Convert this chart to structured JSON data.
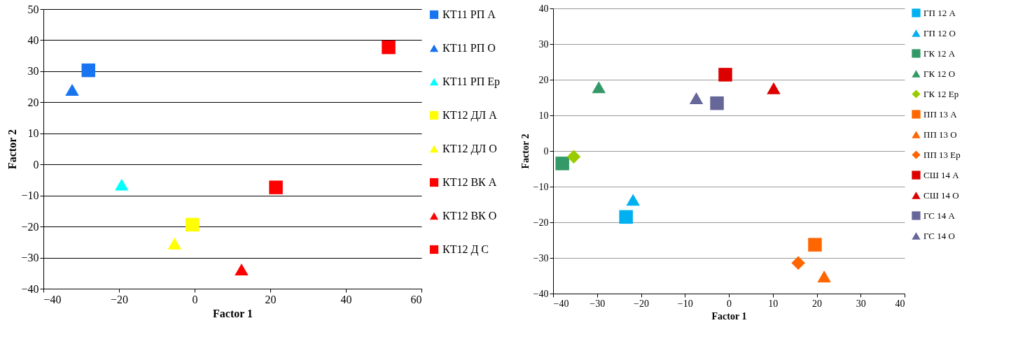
{
  "chart_data": [
    {
      "type": "scatter",
      "xlabel": "Factor 1",
      "ylabel": "Factor 2",
      "xlim": [
        -40,
        60
      ],
      "ylim": [
        -40,
        50
      ],
      "xticks": [
        -40,
        -20,
        0,
        20,
        40,
        60
      ],
      "yticks": [
        -40,
        -30,
        -20,
        -10,
        0,
        10,
        20,
        30,
        40,
        50
      ],
      "grid": "y",
      "legend": "right",
      "series": [
        {
          "name": "КТ11 РП А",
          "color": "#1874f0",
          "marker": "square",
          "x": [
            -28.1
          ],
          "values": [
            30.3
          ]
        },
        {
          "name": "КТ11 РП О",
          "color": "#1874f0",
          "marker": "triangle",
          "x": [
            -32.4
          ],
          "values": [
            24
          ]
        },
        {
          "name": "КТ11 РП Ер",
          "color": "#00ffff",
          "marker": "triangle",
          "x": [
            -19.3
          ],
          "values": [
            -6.5
          ]
        },
        {
          "name": "КТ12 ДЛ А",
          "color": "#ffff00",
          "marker": "square",
          "x": [
            -0.6
          ],
          "values": [
            -19.4
          ]
        },
        {
          "name": "КТ12 ДЛ О",
          "color": "#ffff00",
          "marker": "triangle",
          "x": [
            -5.3
          ],
          "values": [
            -25.5
          ]
        },
        {
          "name": "КТ12 ВК А",
          "color": "#ff0000",
          "marker": "square",
          "x": [
            21.5
          ],
          "values": [
            -7.4
          ]
        },
        {
          "name": "КТ12 ВК О",
          "color": "#ff0000",
          "marker": "triangle",
          "x": [
            12.4
          ],
          "values": [
            -33.8
          ]
        },
        {
          "name": "КТ12 Д С",
          "color": "#ff0000",
          "marker": "square",
          "x": [
            51.3
          ],
          "values": [
            37.7
          ]
        }
      ]
    },
    {
      "type": "scatter",
      "xlabel": "Factor 1",
      "ylabel": "Factor 2",
      "xlim": [
        -40,
        40
      ],
      "ylim": [
        -40,
        40
      ],
      "xticks": [
        -40,
        -30,
        -20,
        -10,
        0,
        10,
        20,
        30,
        40
      ],
      "yticks": [
        -40,
        -30,
        -20,
        -10,
        0,
        10,
        20,
        30,
        40
      ],
      "grid": "y",
      "legend": "right",
      "series": [
        {
          "name": "ГП 12 А",
          "color": "#00b0f0",
          "marker": "square",
          "x": [
            -23.4
          ],
          "values": [
            -18.5
          ]
        },
        {
          "name": "ГП 12 О",
          "color": "#00b0f0",
          "marker": "triangle",
          "x": [
            -21.8
          ],
          "values": [
            -13.7
          ]
        },
        {
          "name": "ГК 12 А",
          "color": "#339966",
          "marker": "square",
          "x": [
            -37.9
          ],
          "values": [
            -3.5
          ]
        },
        {
          "name": "ГК 12 О",
          "color": "#339966",
          "marker": "triangle",
          "x": [
            -29.6
          ],
          "values": [
            17.9
          ]
        },
        {
          "name": "ГК 12 Ер",
          "color": "#99cc00",
          "marker": "diamond",
          "x": [
            -35.3
          ],
          "values": [
            -1.6
          ]
        },
        {
          "name": "ПП 13 А",
          "color": "#ff6600",
          "marker": "square",
          "x": [
            19.6
          ],
          "values": [
            -26.3
          ]
        },
        {
          "name": "ПП 13 О",
          "color": "#ff6600",
          "marker": "triangle",
          "x": [
            21.7
          ],
          "values": [
            -35.2
          ]
        },
        {
          "name": "ПП 13 Ер",
          "color": "#ff6600",
          "marker": "diamond",
          "x": [
            15.8
          ],
          "values": [
            -31.4
          ]
        },
        {
          "name": "СШ 14 А",
          "color": "#dd0000",
          "marker": "square",
          "x": [
            -0.8
          ],
          "values": [
            21.4
          ]
        },
        {
          "name": "СШ 14 О",
          "color": "#dd0000",
          "marker": "triangle",
          "x": [
            10.2
          ],
          "values": [
            17.6
          ]
        },
        {
          "name": "ГС 14 А",
          "color": "#666699",
          "marker": "square",
          "x": [
            -2.7
          ],
          "values": [
            13.4
          ]
        },
        {
          "name": "ГС 14 О",
          "color": "#666699",
          "marker": "triangle",
          "x": [
            -7.4
          ],
          "values": [
            14.8
          ]
        }
      ]
    }
  ]
}
